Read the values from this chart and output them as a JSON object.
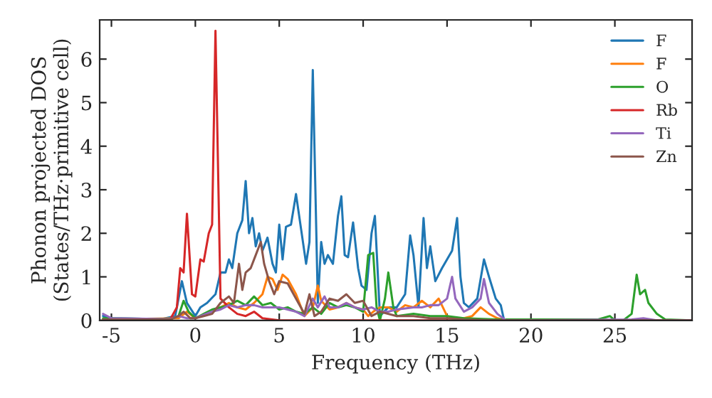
{
  "chart_data": {
    "type": "line",
    "xlabel": "Frequency (THz)",
    "ylabel": "Phonon projected DOS\n(States/THz·primitive cell)",
    "xlim": [
      -5.7,
      29.6
    ],
    "ylim": [
      0,
      6.9
    ],
    "xticks": [
      -5,
      0,
      5,
      10,
      15,
      20,
      25
    ],
    "yticks": [
      0,
      1,
      2,
      3,
      4,
      5,
      6
    ],
    "grid": false,
    "legend": "top right",
    "marker": "none",
    "line_style": "solid",
    "series": [
      {
        "name": "F",
        "color": "#1f77b4",
        "x": [
          -5.5,
          -5,
          -2,
          -1.2,
          -1,
          -0.8,
          -0.5,
          0,
          0.3,
          0.7,
          1.2,
          1.5,
          1.8,
          2,
          2.2,
          2.5,
          2.8,
          3.0,
          3.2,
          3.4,
          3.6,
          3.8,
          4.0,
          4.3,
          4.6,
          4.8,
          5.0,
          5.2,
          5.4,
          5.7,
          6.0,
          6.3,
          6.6,
          6.8,
          7.0,
          7.3,
          7.5,
          7.7,
          7.9,
          8.2,
          8.5,
          8.7,
          8.9,
          9.1,
          9.4,
          9.7,
          9.9,
          10.2,
          10.5,
          10.7,
          11.0,
          11.5,
          12.0,
          12.5,
          12.8,
          13.0,
          13.3,
          13.6,
          13.8,
          14.0,
          14.3,
          14.7,
          15.0,
          15.3,
          15.6,
          15.8,
          16.0,
          16.3,
          16.8,
          17.2,
          17.5,
          17.9,
          18.2,
          18.4,
          29.6
        ],
        "values": [
          0.1,
          0.05,
          0.03,
          0.1,
          0.5,
          0.9,
          0.4,
          0.1,
          0.3,
          0.4,
          0.6,
          1.1,
          1.1,
          1.4,
          1.2,
          2.0,
          2.3,
          3.2,
          2.0,
          2.35,
          1.7,
          2.0,
          1.6,
          1.9,
          1.3,
          1.1,
          2.2,
          1.4,
          2.15,
          2.2,
          2.9,
          2.1,
          1.3,
          1.8,
          5.75,
          0.4,
          1.8,
          1.3,
          1.5,
          1.3,
          2.4,
          2.85,
          1.5,
          1.45,
          2.25,
          1.2,
          0.8,
          0.7,
          2.0,
          2.4,
          0.1,
          0.3,
          0.3,
          0.6,
          1.95,
          1.5,
          0.3,
          2.35,
          1.2,
          1.7,
          0.9,
          1.2,
          1.4,
          1.6,
          2.35,
          1.0,
          0.4,
          0.3,
          0.5,
          1.4,
          1.0,
          0.5,
          0.35,
          0.0,
          0.0
        ]
      },
      {
        "name": "F",
        "color": "#ff7f0e",
        "x": [
          -5.5,
          -1,
          -0.5,
          0,
          1,
          2,
          2.5,
          3,
          3.5,
          4,
          4.3,
          4.6,
          4.9,
          5.2,
          5.5,
          6,
          6.5,
          7,
          7.3,
          7.5,
          8,
          8.5,
          9,
          9.5,
          10,
          10.3,
          10.6,
          11,
          11.5,
          12,
          12.5,
          13,
          13.5,
          14,
          14.5,
          15,
          15.5,
          16,
          16.5,
          17,
          17.5,
          18,
          18.5,
          29.6
        ],
        "values": [
          0.02,
          0.05,
          0.2,
          0.05,
          0.2,
          0.4,
          0.3,
          0.25,
          0.4,
          0.6,
          1.0,
          0.95,
          0.7,
          1.05,
          0.95,
          0.6,
          0.1,
          0.3,
          0.8,
          0.45,
          0.25,
          0.3,
          0.4,
          0.3,
          0.25,
          0.1,
          0.2,
          0.3,
          0.3,
          0.2,
          0.35,
          0.3,
          0.45,
          0.3,
          0.5,
          0.1,
          0.05,
          0.05,
          0.1,
          0.3,
          0.15,
          0.05,
          0,
          0
        ]
      },
      {
        "name": "O",
        "color": "#2ca02c",
        "x": [
          -5.5,
          -1.5,
          -1,
          -0.7,
          -0.4,
          0,
          0.5,
          1,
          1.5,
          2,
          2.5,
          3.0,
          3.5,
          4,
          4.5,
          5,
          5.5,
          6,
          6.5,
          7,
          7.5,
          8,
          8.5,
          9,
          9.5,
          10,
          10.3,
          10.6,
          10.8,
          11,
          11.3,
          11.5,
          11.8,
          12,
          13,
          14,
          15,
          16,
          18,
          24,
          24.7,
          25,
          25.5,
          26,
          26.3,
          26.5,
          26.8,
          27,
          27.5,
          28,
          29.6
        ],
        "values": [
          0.05,
          0.03,
          0.1,
          0.45,
          0.2,
          0.05,
          0.15,
          0.25,
          0.3,
          0.35,
          0.45,
          0.35,
          0.55,
          0.35,
          0.4,
          0.25,
          0.3,
          0.2,
          0.15,
          0.3,
          0.15,
          0.4,
          0.3,
          0.35,
          0.3,
          0.2,
          1.5,
          1.55,
          0.3,
          0.0,
          0.5,
          1.1,
          0.3,
          0.1,
          0.15,
          0.1,
          0.1,
          0.05,
          0.02,
          0.02,
          0.1,
          0.0,
          0.0,
          0.15,
          1.05,
          0.6,
          0.7,
          0.4,
          0.15,
          0.02,
          0
        ]
      },
      {
        "name": "Rb",
        "color": "#d62728",
        "x": [
          -5.5,
          -1.5,
          -1.1,
          -0.9,
          -0.7,
          -0.5,
          -0.2,
          0,
          0.3,
          0.5,
          0.8,
          1.0,
          1.2,
          1.5,
          2.0,
          2.5,
          3,
          3.5,
          4,
          5,
          29.6
        ],
        "values": [
          0.0,
          0.02,
          0.3,
          1.2,
          1.1,
          2.45,
          0.6,
          0.55,
          1.4,
          1.35,
          2.0,
          2.2,
          6.65,
          0.5,
          0.3,
          0.15,
          0.1,
          0.2,
          0.05,
          0.0,
          0.0
        ]
      },
      {
        "name": "Ti",
        "color": "#9467bd",
        "x": [
          -5.5,
          -5,
          -1.5,
          -1,
          -0.5,
          0,
          1,
          1.5,
          2,
          2.5,
          3,
          3.5,
          4,
          4.5,
          5,
          5.5,
          6,
          6.5,
          7,
          7.3,
          7.7,
          8,
          8.5,
          9,
          9.5,
          10,
          10.5,
          11,
          11.5,
          12,
          13,
          13.5,
          14,
          14.5,
          15,
          15.3,
          15.5,
          16,
          16.5,
          17,
          17.2,
          17.5,
          18,
          18.5,
          26,
          26.7,
          27.5,
          29.6
        ],
        "values": [
          0.15,
          0.05,
          0.03,
          0.1,
          0.05,
          0.05,
          0.2,
          0.25,
          0.35,
          0.3,
          0.35,
          0.35,
          0.3,
          0.3,
          0.3,
          0.25,
          0.2,
          0.1,
          0.5,
          0.3,
          0.55,
          0.3,
          0.3,
          0.4,
          0.3,
          0.25,
          0.3,
          0.2,
          0.2,
          0.25,
          0.3,
          0.3,
          0.35,
          0.35,
          0.5,
          1.0,
          0.5,
          0.2,
          0.3,
          0.5,
          0.95,
          0.4,
          0.15,
          0,
          0.02,
          0.05,
          0.0,
          0
        ]
      },
      {
        "name": "Zn",
        "color": "#8c564b",
        "x": [
          -5.5,
          -1.5,
          -1,
          -0.7,
          -0.3,
          0,
          0.5,
          1,
          1.5,
          2,
          2.3,
          2.6,
          2.8,
          3.0,
          3.3,
          3.6,
          3.9,
          4.1,
          4.4,
          4.7,
          5,
          5.5,
          6,
          6.5,
          6.8,
          7.1,
          7.5,
          8,
          8.5,
          9,
          9.5,
          10,
          10.5,
          11,
          12,
          13,
          14,
          15,
          16,
          18,
          29.6
        ],
        "values": [
          0.02,
          0.02,
          0.1,
          0.2,
          0.05,
          0.05,
          0.1,
          0.15,
          0.4,
          0.55,
          0.4,
          1.3,
          0.7,
          1.1,
          1.2,
          1.5,
          1.8,
          1.3,
          0.9,
          0.6,
          0.9,
          0.85,
          0.5,
          0.15,
          0.6,
          0.1,
          0.2,
          0.5,
          0.45,
          0.6,
          0.4,
          0.45,
          0.1,
          0.2,
          0.1,
          0.1,
          0.05,
          0.05,
          0.02,
          0,
          0
        ]
      }
    ]
  }
}
